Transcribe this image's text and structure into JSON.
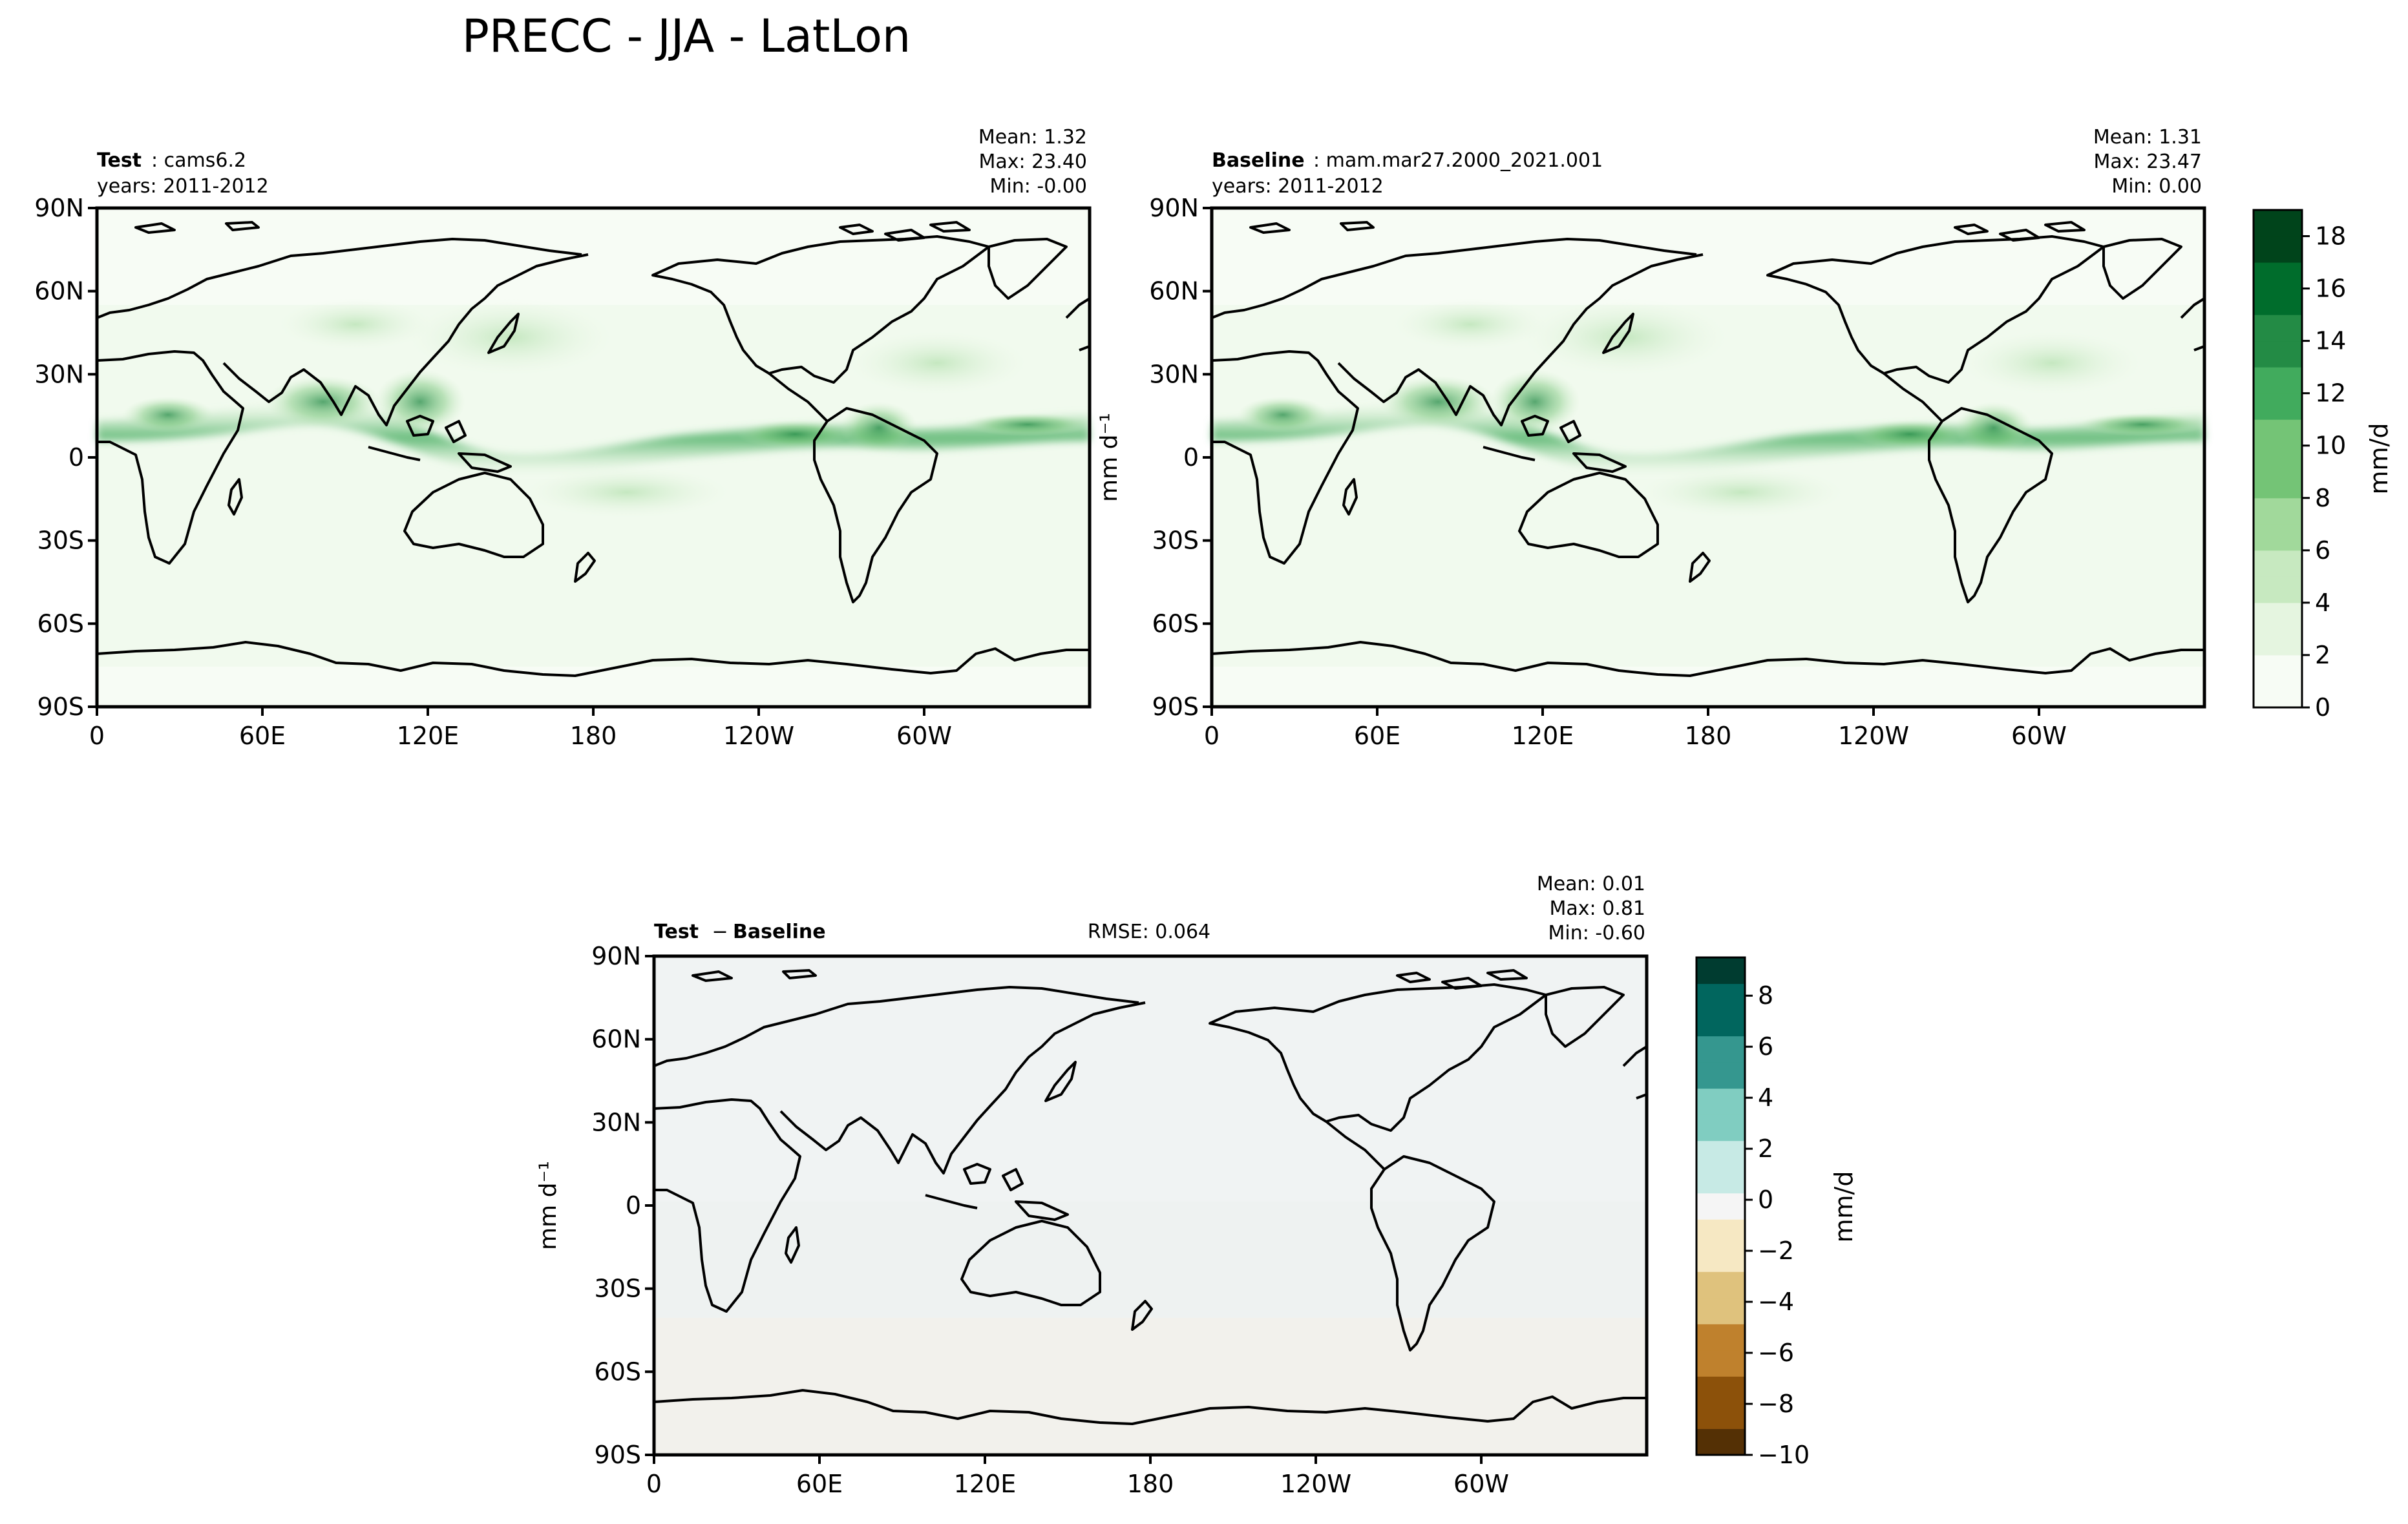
{
  "figure": {
    "title": "PRECC - JJA - LatLon"
  },
  "colors": {
    "precip_scale": [
      "#f7fcf5",
      "#e5f5e0",
      "#c7e9c0",
      "#a1d99b",
      "#74c476",
      "#41ab5d",
      "#238b45",
      "#006d2c",
      "#00441b"
    ],
    "diff_scale": [
      "#543005",
      "#8c510a",
      "#bf812d",
      "#dfc27d",
      "#f6e8c3",
      "#f5f5f5",
      "#c7eae5",
      "#80cdc1",
      "#35978f",
      "#01665e",
      "#003c30"
    ],
    "coast": "#000000",
    "itcz": "#41ab5d"
  },
  "panels": {
    "test": {
      "label_bold": "Test",
      "label_text": ": cams6.2",
      "years": "years: 2011-2012",
      "mean": "Mean:  1.32",
      "max": "Max: 23.40",
      "min": "Min: -0.00"
    },
    "baseline": {
      "label_bold": "Baseline",
      "label_text": ": mam.mar27.2000_2021.001",
      "years": "years: 2011-2012",
      "mean": "Mean:  1.31",
      "max": "Max: 23.47",
      "min": "Min:  0.00"
    },
    "diff": {
      "label_bold_a": "Test",
      "label_sep": " − ",
      "label_bold_b": "Baseline",
      "rmse": "RMSE: 0.064",
      "mean": "Mean:  0.01",
      "max": "Max:  0.81",
      "min": "Min: -0.60"
    }
  },
  "axes": {
    "lat_ticks": [
      "90N",
      "60N",
      "30N",
      "0",
      "30S",
      "60S",
      "90S"
    ],
    "lon_ticks": [
      "0",
      "60E",
      "120E",
      "180",
      "120W",
      "60W"
    ],
    "ylabel": "mm d⁻¹"
  },
  "colorbars": {
    "precip": {
      "label": "mm/d",
      "ticks": [
        "18",
        "16",
        "14",
        "12",
        "10",
        "8",
        "6",
        "4",
        "2",
        "0"
      ]
    },
    "diff": {
      "label": "mm/d",
      "ticks": [
        "8",
        "6",
        "4",
        "2",
        "0",
        "−2",
        "−4",
        "−6",
        "−8",
        "−10"
      ]
    }
  },
  "chart_data": [
    {
      "type": "heatmap",
      "name": "Test",
      "variable": "PRECC",
      "season": "JJA",
      "units": "mm/d",
      "xlim": [
        0,
        360
      ],
      "ylim": [
        -90,
        90
      ],
      "colorbar_range": [
        0,
        19
      ],
      "mean": 1.32,
      "max": 23.4,
      "min": -0.0
    },
    {
      "type": "heatmap",
      "name": "Baseline",
      "variable": "PRECC",
      "season": "JJA",
      "units": "mm/d",
      "xlim": [
        0,
        360
      ],
      "ylim": [
        -90,
        90
      ],
      "colorbar_range": [
        0,
        19
      ],
      "mean": 1.31,
      "max": 23.47,
      "min": 0.0
    },
    {
      "type": "heatmap",
      "name": "Test - Baseline",
      "variable": "PRECC",
      "season": "JJA",
      "units": "mm/d",
      "xlim": [
        0,
        360
      ],
      "ylim": [
        -90,
        90
      ],
      "colorbar_range": [
        -10,
        9.5
      ],
      "mean": 0.01,
      "max": 0.81,
      "min": -0.6,
      "rmse": 0.064
    }
  ]
}
